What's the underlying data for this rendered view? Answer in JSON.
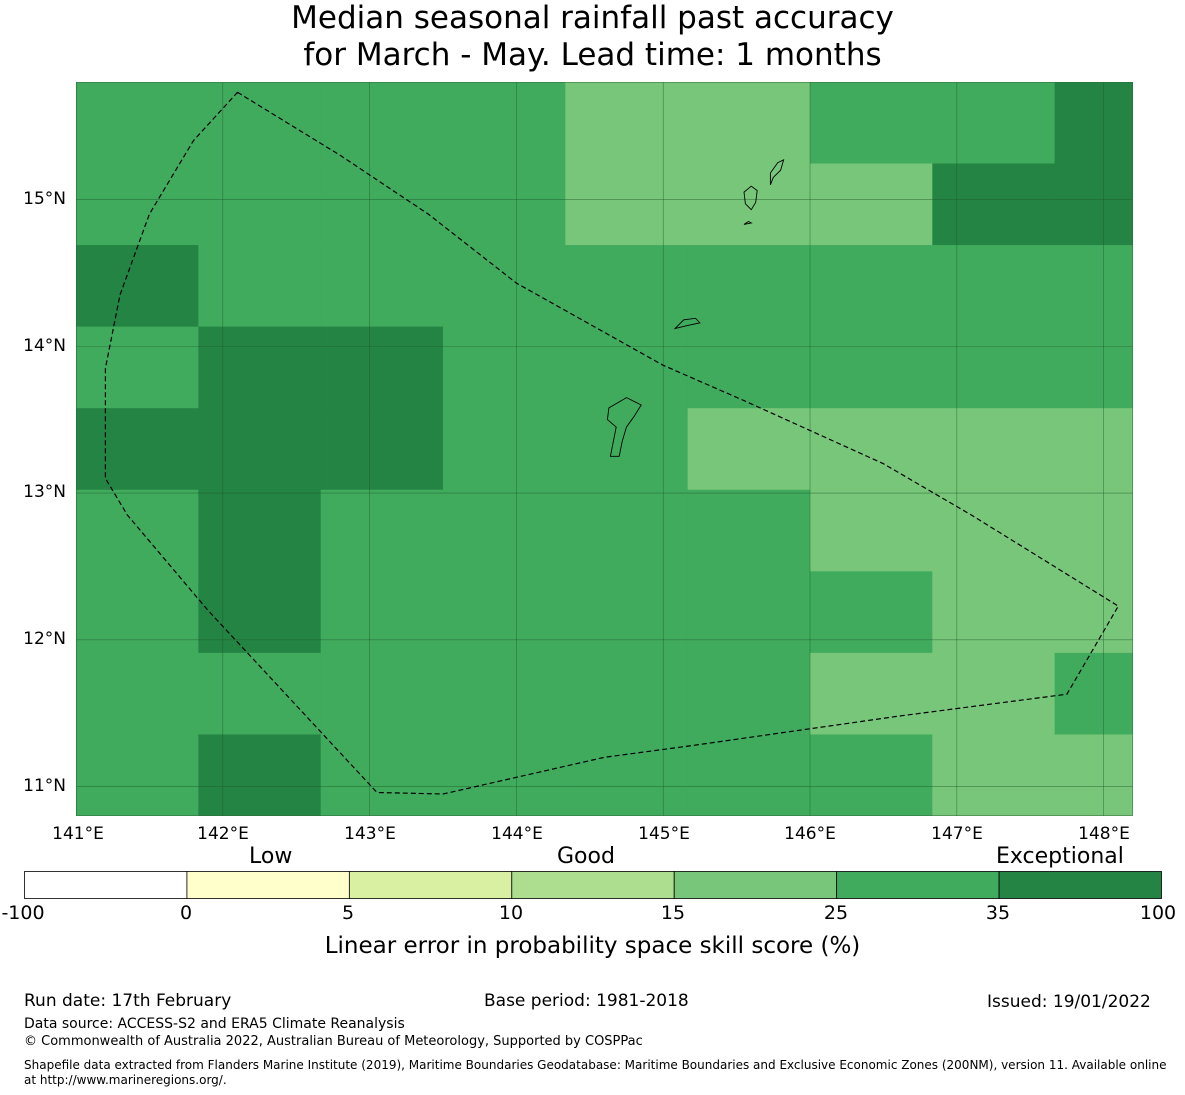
{
  "title": {
    "line1": "Median seasonal rainfall past accuracy",
    "line2": "for March - May. Lead time: 1 months"
  },
  "map": {
    "lon_range": [
      141.0,
      148.2
    ],
    "lat_range": [
      10.8,
      15.8
    ],
    "grid_origin_lon": 141.0,
    "grid_origin_lat": 10.8,
    "grid_cell_lon": 0.8333,
    "grid_cell_lat": 0.5556,
    "skill_grid_bands_top_to_bottom": [
      [
        25,
        25,
        25,
        25,
        15,
        15,
        25,
        25,
        35
      ],
      [
        25,
        25,
        25,
        25,
        15,
        15,
        15,
        35,
        35
      ],
      [
        35,
        25,
        25,
        25,
        25,
        25,
        25,
        25,
        25
      ],
      [
        25,
        35,
        35,
        25,
        25,
        25,
        25,
        25,
        25
      ],
      [
        35,
        35,
        35,
        25,
        25,
        15,
        15,
        15,
        15
      ],
      [
        25,
        35,
        25,
        25,
        25,
        25,
        15,
        15,
        15
      ],
      [
        25,
        35,
        25,
        25,
        25,
        25,
        25,
        15,
        15
      ],
      [
        25,
        25,
        25,
        25,
        25,
        25,
        15,
        15,
        25
      ],
      [
        25,
        35,
        25,
        25,
        25,
        25,
        25,
        15,
        15
      ]
    ],
    "lat_ticks": [
      15,
      14,
      13,
      12,
      11
    ],
    "lon_ticks": [
      141,
      142,
      143,
      144,
      145,
      146,
      147,
      148
    ],
    "lat_tick_labels": [
      "15°N",
      "14°N",
      "13°N",
      "12°N",
      "11°N"
    ],
    "lon_tick_labels": [
      "141°E",
      "142°E",
      "143°E",
      "144°E",
      "145°E",
      "146°E",
      "147°E",
      "148°E"
    ],
    "eez_boundary_lonlat": [
      [
        142.1,
        15.73
      ],
      [
        142.8,
        15.3
      ],
      [
        143.4,
        14.9
      ],
      [
        144.0,
        14.43
      ],
      [
        145.0,
        13.87
      ],
      [
        145.55,
        13.63
      ],
      [
        146.5,
        13.2
      ],
      [
        147.1,
        12.85
      ],
      [
        148.1,
        12.23
      ],
      [
        147.75,
        11.63
      ],
      [
        146.6,
        11.48
      ],
      [
        145.2,
        11.28
      ],
      [
        144.6,
        11.2
      ],
      [
        143.5,
        10.95
      ],
      [
        143.05,
        10.96
      ],
      [
        141.9,
        12.2
      ],
      [
        141.35,
        12.85
      ],
      [
        141.2,
        13.1
      ],
      [
        141.2,
        13.85
      ],
      [
        141.3,
        14.35
      ],
      [
        141.5,
        14.9
      ],
      [
        141.8,
        15.4
      ],
      [
        142.1,
        15.73
      ]
    ],
    "islands_lonlat": [
      [
        [
          144.64,
          13.25
        ],
        [
          144.66,
          13.35
        ],
        [
          144.68,
          13.45
        ],
        [
          144.62,
          13.5
        ],
        [
          144.63,
          13.58
        ],
        [
          144.75,
          13.65
        ],
        [
          144.85,
          13.6
        ],
        [
          144.8,
          13.52
        ],
        [
          144.75,
          13.45
        ],
        [
          144.72,
          13.35
        ],
        [
          144.7,
          13.25
        ]
      ],
      [
        [
          145.08,
          14.12
        ],
        [
          145.14,
          14.18
        ],
        [
          145.22,
          14.19
        ],
        [
          145.25,
          14.16
        ],
        [
          145.16,
          14.14
        ],
        [
          145.08,
          14.12
        ]
      ],
      [
        [
          145.6,
          14.93
        ],
        [
          145.56,
          14.97
        ],
        [
          145.55,
          15.05
        ],
        [
          145.6,
          15.09
        ],
        [
          145.64,
          15.06
        ],
        [
          145.63,
          14.98
        ],
        [
          145.6,
          14.93
        ]
      ],
      [
        [
          145.73,
          15.1
        ],
        [
          145.75,
          15.15
        ],
        [
          145.8,
          15.2
        ],
        [
          145.82,
          15.27
        ],
        [
          145.78,
          15.25
        ],
        [
          145.73,
          15.18
        ],
        [
          145.73,
          15.1
        ]
      ],
      [
        [
          145.55,
          14.83
        ],
        [
          145.58,
          14.85
        ],
        [
          145.6,
          14.84
        ],
        [
          145.55,
          14.83
        ]
      ]
    ]
  },
  "legend": {
    "categories": [
      "Low",
      "Good",
      "Exceptional"
    ],
    "boundaries": [
      -100,
      0,
      5,
      10,
      15,
      25,
      35,
      100
    ],
    "boundary_labels": [
      "-100",
      "0",
      "5",
      "10",
      "15",
      "25",
      "35",
      "100"
    ],
    "colors": [
      "#ffffff",
      "#ffffcc",
      "#d9f0a3",
      "#addd8e",
      "#78c679",
      "#41ab5d",
      "#238443"
    ],
    "label": "Linear error in probability space skill score (%)"
  },
  "footer": {
    "run_date": "Run date: 17th February",
    "base_period": "Base period: 1981-2018",
    "issued": "Issued: 19/01/2022",
    "data_source": "Data source: ACCESS-S2 and ERA5 Climate Reanalysis",
    "copyright": "© Commonwealth of Australia 2022, Australian Bureau of Meteorology, Supported by COSPPac",
    "shapefile": "Shapefile data extracted from Flanders Marine Institute (2019), Maritime Boundaries Geodatabase: Maritime Boundaries and Exclusive Economic Zones (200NM), version 11. Available online at http://www.marineregions.org/."
  }
}
